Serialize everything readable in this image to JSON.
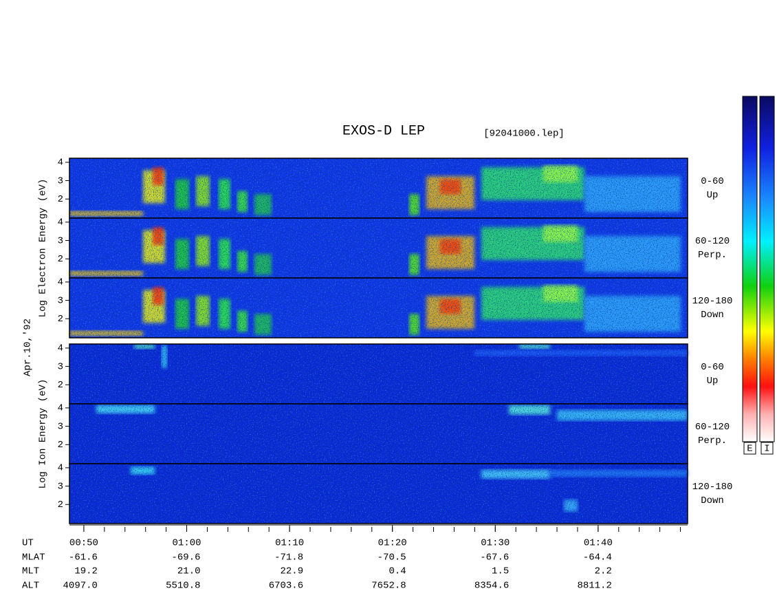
{
  "chart_data": {
    "type": "spectrogram",
    "title": "EXOS-D LEP",
    "subtitle": "[92041000.lep]",
    "date_label": "Apr.10,'92",
    "xlim": [
      48.6,
      108.7
    ],
    "xticks": [
      {
        "value": 50,
        "label": "00:50"
      },
      {
        "value": 60,
        "label": "01:00"
      },
      {
        "value": 70,
        "label": "01:10"
      },
      {
        "value": 80,
        "label": "01:20"
      },
      {
        "value": 90,
        "label": "01:30"
      },
      {
        "value": 100,
        "label": "01:40"
      }
    ],
    "xticks_minor": [
      50,
      52,
      54,
      56,
      58,
      60,
      62,
      64,
      66,
      68,
      70,
      72,
      74,
      76,
      78,
      80,
      82,
      84,
      86,
      88,
      90,
      92,
      94,
      96,
      98,
      100,
      102,
      104,
      106,
      108
    ],
    "groups": [
      {
        "ylabel": "Log Electron Energy (eV)",
        "colorbar_label": "E",
        "panels": [
          {
            "ylim": [
              0.96,
              4.22
            ],
            "yticks": [
              2,
              3,
              4
            ],
            "pitch_angle": "0-60",
            "direction": "Up"
          },
          {
            "ylim": [
              0.96,
              4.22
            ],
            "yticks": [
              2,
              3,
              4
            ],
            "pitch_angle": "60-120",
            "direction": "Perp."
          },
          {
            "ylim": [
              0.96,
              4.22
            ],
            "yticks": [
              2,
              3,
              4
            ],
            "pitch_angle": "120-180",
            "direction": "Down"
          }
        ]
      },
      {
        "ylabel": "Log Ion Energy (eV)",
        "colorbar_label": "I",
        "panels": [
          {
            "ylim": [
              0.96,
              4.22
            ],
            "yticks": [
              2,
              3,
              4
            ],
            "pitch_angle": "0-60",
            "direction": "Up"
          },
          {
            "ylim": [
              0.96,
              4.22
            ],
            "yticks": [
              2,
              3,
              4
            ],
            "pitch_angle": "60-120",
            "direction": "Perp."
          },
          {
            "ylim": [
              0.96,
              4.22
            ],
            "yticks": [
              2,
              3,
              4
            ],
            "pitch_angle": "120-180",
            "direction": "Down"
          }
        ]
      }
    ],
    "orbit": {
      "labels": [
        "UT",
        "MLAT",
        "MLT",
        "ALT"
      ],
      "rows": [
        [
          "-61.6",
          "-69.6",
          "-71.8",
          "-70.5",
          "-67.6",
          "-64.4"
        ],
        [
          "19.2",
          "21.0",
          "22.9",
          "0.4",
          "1.5",
          "2.2"
        ],
        [
          "4097.0",
          "5510.8",
          "6703.6",
          "7652.8",
          "8354.6",
          "8811.2"
        ]
      ]
    }
  }
}
